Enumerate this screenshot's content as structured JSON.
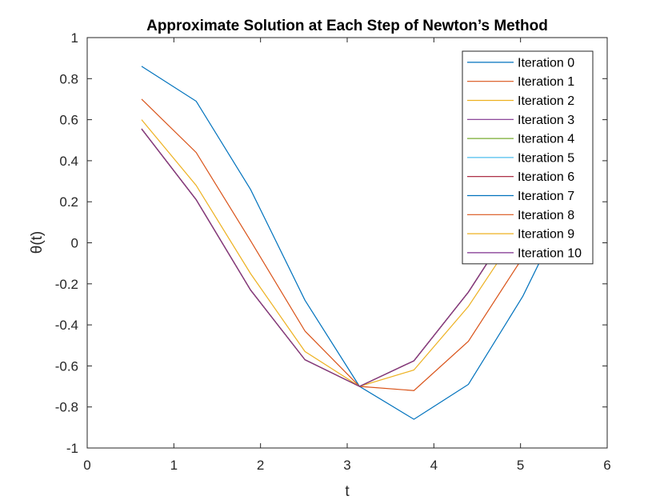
{
  "chart_data": {
    "type": "line",
    "title": "Approximate Solution at Each Step of Newton’s Method",
    "xlabel": "t",
    "ylabel": "θ(t)",
    "xlim": [
      0,
      6
    ],
    "ylim": [
      -1,
      1
    ],
    "xticks": [
      0,
      1,
      2,
      3,
      4,
      5,
      6
    ],
    "xtick_labels": [
      "0",
      "1",
      "2",
      "3",
      "4",
      "5",
      "6"
    ],
    "yticks": [
      -1,
      -0.8,
      -0.6,
      -0.4,
      -0.2,
      0,
      0.2,
      0.4,
      0.6,
      0.8,
      1
    ],
    "ytick_labels": [
      "-1",
      "-0.8",
      "-0.6",
      "-0.4",
      "-0.2",
      "0",
      "0.2",
      "0.4",
      "0.6",
      "0.8",
      "1"
    ],
    "grid": false,
    "legend_position": "top-right",
    "x": [
      0.628,
      1.257,
      1.885,
      2.513,
      3.142,
      3.77,
      4.398,
      5.027,
      5.655
    ],
    "series": [
      {
        "name": "Iteration 0",
        "color": "#0072BD",
        "values": [
          0.86,
          0.69,
          0.26,
          -0.28,
          -0.7,
          -0.86,
          -0.69,
          -0.26,
          0.28
        ]
      },
      {
        "name": "Iteration 1",
        "color": "#D95319",
        "values": [
          0.7,
          0.44,
          0.01,
          -0.43,
          -0.7,
          -0.72,
          -0.48,
          -0.07,
          0.36
        ]
      },
      {
        "name": "Iteration 2",
        "color": "#EDB120",
        "values": [
          0.6,
          0.28,
          -0.15,
          -0.53,
          -0.7,
          -0.62,
          -0.31,
          0.09,
          0.45
        ]
      },
      {
        "name": "Iteration 3",
        "color": "#7E2F8E",
        "values": [
          0.555,
          0.21,
          -0.23,
          -0.57,
          -0.7,
          -0.575,
          -0.24,
          0.17,
          0.5
        ]
      },
      {
        "name": "Iteration 4",
        "color": "#77AC30",
        "values": [
          0.555,
          0.21,
          -0.23,
          -0.57,
          -0.7,
          -0.575,
          -0.24,
          0.17,
          0.5
        ]
      },
      {
        "name": "Iteration 5",
        "color": "#4DBEEE",
        "values": [
          0.555,
          0.21,
          -0.23,
          -0.57,
          -0.7,
          -0.575,
          -0.24,
          0.17,
          0.5
        ]
      },
      {
        "name": "Iteration 6",
        "color": "#A2142F",
        "values": [
          0.555,
          0.21,
          -0.23,
          -0.57,
          -0.7,
          -0.575,
          -0.24,
          0.17,
          0.5
        ]
      },
      {
        "name": "Iteration 7",
        "color": "#0072BD",
        "values": [
          0.555,
          0.21,
          -0.23,
          -0.57,
          -0.7,
          -0.575,
          -0.24,
          0.17,
          0.5
        ]
      },
      {
        "name": "Iteration 8",
        "color": "#D95319",
        "values": [
          0.555,
          0.21,
          -0.23,
          -0.57,
          -0.7,
          -0.575,
          -0.24,
          0.17,
          0.5
        ]
      },
      {
        "name": "Iteration 9",
        "color": "#EDB120",
        "values": [
          0.555,
          0.21,
          -0.23,
          -0.57,
          -0.7,
          -0.575,
          -0.24,
          0.17,
          0.5
        ]
      },
      {
        "name": "Iteration 10",
        "color": "#7E2F8E",
        "values": [
          0.555,
          0.21,
          -0.23,
          -0.57,
          -0.7,
          -0.575,
          -0.24,
          0.17,
          0.5
        ]
      }
    ]
  }
}
